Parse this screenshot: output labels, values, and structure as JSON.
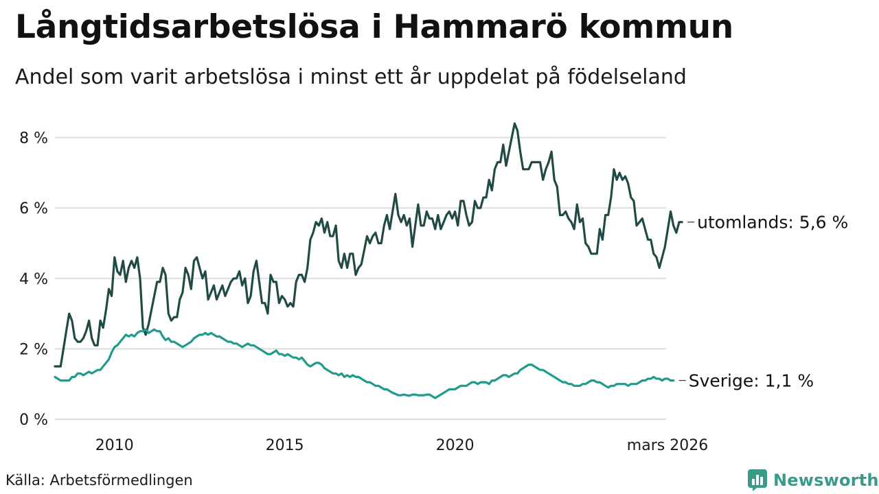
{
  "title": "Långtidsarbetslösa i Hammarö kommun",
  "subtitle": "Andel som varit arbetslösa i minst ett år uppdelat på födelseland",
  "source": "Källa: Arbetsförmedlingen",
  "brand": {
    "name": "Newsworthy",
    "icon": "newsworthy-logo-icon",
    "color": "#3a9a8a"
  },
  "chart_data": {
    "type": "line",
    "x_unit": "year (decimal, monthly data)",
    "x_start": 2008.25,
    "x_step": 0.0833333,
    "xlim": [
      2008.25,
      2026.2
    ],
    "ylim": [
      0,
      8.4
    ],
    "ylabel": "",
    "xlabel": "",
    "grid": true,
    "y_ticks": [
      {
        "value": 0,
        "label": "0 %"
      },
      {
        "value": 2,
        "label": "2 %"
      },
      {
        "value": 4,
        "label": "4 %"
      },
      {
        "value": 6,
        "label": "6 %"
      },
      {
        "value": 8,
        "label": "8 %"
      }
    ],
    "x_ticks": [
      {
        "value": 2010,
        "label": "2010"
      },
      {
        "value": 2015,
        "label": "2015"
      },
      {
        "value": 2020,
        "label": "2020"
      },
      {
        "value": 2026.17,
        "label": "mars 2026"
      }
    ],
    "series": [
      {
        "name": "utomlands",
        "label": "utomlands: 5,6 %",
        "color": "#214a45",
        "values": [
          1.5,
          1.5,
          1.5,
          2.0,
          2.5,
          3.0,
          2.8,
          2.3,
          2.2,
          2.2,
          2.3,
          2.5,
          2.8,
          2.3,
          2.1,
          2.1,
          2.8,
          2.6,
          3.1,
          3.7,
          3.5,
          4.6,
          4.2,
          4.1,
          4.5,
          3.9,
          4.3,
          4.5,
          4.3,
          4.6,
          4.0,
          2.6,
          2.4,
          2.7,
          3.1,
          3.5,
          3.9,
          3.9,
          4.3,
          4.1,
          3.0,
          2.8,
          2.9,
          2.9,
          3.4,
          3.6,
          4.3,
          4.1,
          3.7,
          4.5,
          4.6,
          4.3,
          4.0,
          4.2,
          3.4,
          3.6,
          3.8,
          3.4,
          3.6,
          3.8,
          3.5,
          3.7,
          3.9,
          4.0,
          4.0,
          4.2,
          3.8,
          4.0,
          3.3,
          3.5,
          4.2,
          4.5,
          3.9,
          3.3,
          3.3,
          3.0,
          4.1,
          3.9,
          3.9,
          3.3,
          3.5,
          3.4,
          3.2,
          3.3,
          3.2,
          3.9,
          4.1,
          4.1,
          3.9,
          4.3,
          5.1,
          5.3,
          5.6,
          5.5,
          5.7,
          5.3,
          5.6,
          5.2,
          5.2,
          5.5,
          4.5,
          4.3,
          4.7,
          4.3,
          4.7,
          4.7,
          4.1,
          4.3,
          4.4,
          4.8,
          5.2,
          5.0,
          5.2,
          5.3,
          5.0,
          5.0,
          5.5,
          5.8,
          5.4,
          5.9,
          6.4,
          5.8,
          5.6,
          5.8,
          5.5,
          5.7,
          4.9,
          5.5,
          6.1,
          5.5,
          5.5,
          5.9,
          5.7,
          5.7,
          5.4,
          5.8,
          5.4,
          5.6,
          5.8,
          5.9,
          5.7,
          5.9,
          5.5,
          6.2,
          6.2,
          5.8,
          5.5,
          5.6,
          6.2,
          6.0,
          6.0,
          6.3,
          6.3,
          6.8,
          6.5,
          7.1,
          7.3,
          7.3,
          7.8,
          7.2,
          7.6,
          8.0,
          8.4,
          8.2,
          7.6,
          7.1,
          7.1,
          7.1,
          7.3,
          7.3,
          7.3,
          7.3,
          6.8,
          7.1,
          7.3,
          7.6,
          6.8,
          6.6,
          5.8,
          5.8,
          5.9,
          5.7,
          5.6,
          5.4,
          6.1,
          5.6,
          5.7,
          5.0,
          4.9,
          4.7,
          4.7,
          4.7,
          5.4,
          5.1,
          5.8,
          5.8,
          6.3,
          7.1,
          6.8,
          7.0,
          6.8,
          6.9,
          6.7,
          6.3,
          6.2,
          5.5,
          5.6,
          5.7,
          5.4,
          5.1,
          5.1,
          4.7,
          4.6,
          4.3,
          4.6,
          4.9,
          5.4,
          5.9,
          5.5,
          5.3,
          5.6,
          5.6
        ]
      },
      {
        "name": "Sverige",
        "label": "Sverige: 1,1 %",
        "color": "#1f9a8c",
        "values": [
          1.2,
          1.15,
          1.1,
          1.1,
          1.1,
          1.1,
          1.2,
          1.2,
          1.3,
          1.3,
          1.25,
          1.3,
          1.35,
          1.3,
          1.35,
          1.4,
          1.4,
          1.5,
          1.6,
          1.7,
          1.9,
          2.05,
          2.1,
          2.2,
          2.3,
          2.4,
          2.35,
          2.4,
          2.35,
          2.45,
          2.5,
          2.5,
          2.55,
          2.45,
          2.5,
          2.55,
          2.5,
          2.5,
          2.35,
          2.25,
          2.3,
          2.2,
          2.2,
          2.15,
          2.1,
          2.05,
          2.1,
          2.15,
          2.2,
          2.3,
          2.35,
          2.4,
          2.4,
          2.45,
          2.4,
          2.45,
          2.4,
          2.35,
          2.35,
          2.3,
          2.25,
          2.2,
          2.2,
          2.15,
          2.15,
          2.1,
          2.05,
          2.1,
          2.15,
          2.1,
          2.1,
          2.05,
          2.0,
          1.95,
          1.9,
          1.85,
          1.85,
          1.9,
          1.95,
          1.85,
          1.85,
          1.8,
          1.85,
          1.8,
          1.75,
          1.75,
          1.7,
          1.75,
          1.65,
          1.55,
          1.5,
          1.55,
          1.6,
          1.6,
          1.55,
          1.45,
          1.4,
          1.35,
          1.3,
          1.3,
          1.25,
          1.3,
          1.2,
          1.25,
          1.2,
          1.25,
          1.2,
          1.2,
          1.15,
          1.1,
          1.05,
          1.05,
          1.0,
          0.95,
          0.95,
          0.9,
          0.85,
          0.85,
          0.8,
          0.75,
          0.72,
          0.68,
          0.68,
          0.7,
          0.68,
          0.67,
          0.7,
          0.7,
          0.68,
          0.68,
          0.68,
          0.7,
          0.7,
          0.65,
          0.6,
          0.65,
          0.7,
          0.75,
          0.8,
          0.85,
          0.85,
          0.85,
          0.9,
          0.95,
          0.95,
          0.95,
          1.0,
          1.05,
          1.05,
          1.0,
          1.05,
          1.05,
          1.05,
          1.0,
          1.1,
          1.1,
          1.15,
          1.2,
          1.25,
          1.25,
          1.2,
          1.25,
          1.3,
          1.3,
          1.4,
          1.45,
          1.5,
          1.55,
          1.55,
          1.5,
          1.45,
          1.4,
          1.4,
          1.35,
          1.3,
          1.25,
          1.2,
          1.15,
          1.1,
          1.05,
          1.05,
          1.0,
          1.0,
          0.95,
          0.95,
          0.95,
          1.0,
          1.0,
          1.05,
          1.1,
          1.1,
          1.05,
          1.05,
          1.0,
          0.95,
          0.9,
          0.95,
          0.95,
          1.0,
          1.0,
          1.0,
          1.0,
          0.95,
          1.0,
          1.0,
          1.0,
          1.05,
          1.1,
          1.1,
          1.15,
          1.15,
          1.2,
          1.15,
          1.15,
          1.1,
          1.15,
          1.15,
          1.1,
          1.1
        ]
      }
    ]
  }
}
